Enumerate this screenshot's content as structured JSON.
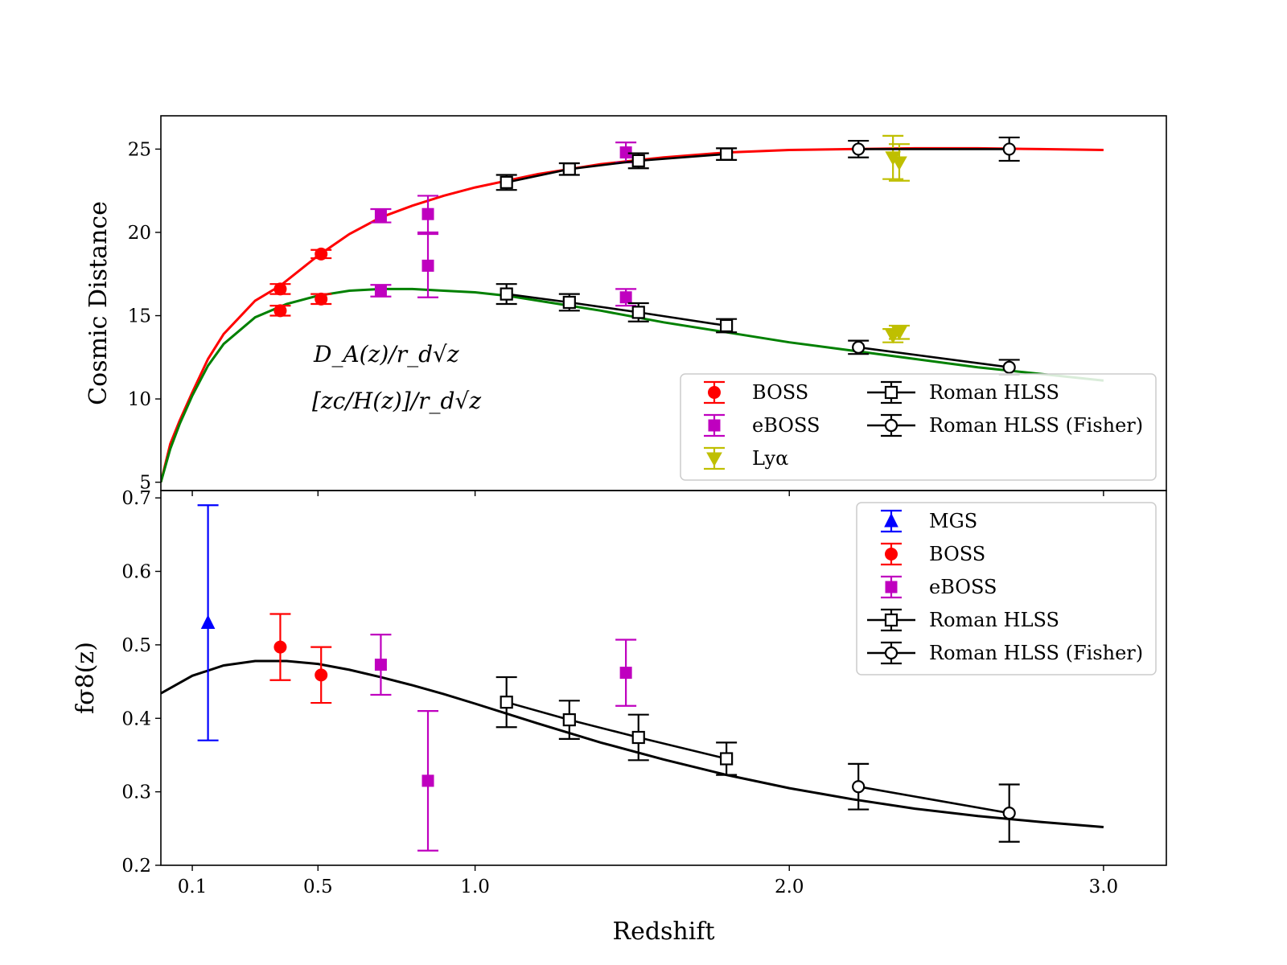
{
  "chart_data": [
    {
      "type": "scatter",
      "name": "Cosmic distance panel",
      "ylabel": "Cosmic Distance",
      "xlabel": "Redshift",
      "x_display_domain": [
        0.0,
        3.2
      ],
      "ylim": [
        4.5,
        27.0
      ],
      "yticks": [
        5,
        10,
        15,
        20,
        25
      ],
      "xticks": [
        0.1,
        0.5,
        1.0,
        2.0,
        3.0
      ],
      "xtick_labels": [
        "0.1",
        "0.5",
        "1.0",
        "2.0",
        "3.0"
      ],
      "curve_labels": [
        {
          "key": "DA",
          "text": "D_A(z)/r_d√z",
          "color": "#ff0000"
        },
        {
          "key": "DH",
          "text": "[zc/H(z)]/r_d√z",
          "color": "#008000"
        }
      ],
      "curves": [
        {
          "key": "DA",
          "color": "#ff0000",
          "x": [
            0.0,
            0.03,
            0.06,
            0.1,
            0.15,
            0.2,
            0.3,
            0.38,
            0.5,
            0.6,
            0.7,
            0.8,
            0.9,
            1.0,
            1.1,
            1.2,
            1.3,
            1.4,
            1.5,
            1.6,
            1.8,
            2.0,
            2.2,
            2.4,
            2.6,
            2.8,
            3.0
          ],
          "y": [
            5.0,
            7.3,
            8.7,
            10.4,
            12.4,
            13.9,
            15.9,
            16.8,
            18.6,
            19.9,
            20.9,
            21.6,
            22.2,
            22.7,
            23.1,
            23.5,
            23.8,
            24.1,
            24.3,
            24.5,
            24.8,
            24.95,
            25.0,
            25.05,
            25.05,
            25.0,
            24.95
          ]
        },
        {
          "key": "DH",
          "color": "#008000",
          "x": [
            0.0,
            0.03,
            0.06,
            0.1,
            0.15,
            0.2,
            0.3,
            0.4,
            0.5,
            0.6,
            0.7,
            0.8,
            0.9,
            1.0,
            1.1,
            1.2,
            1.4,
            1.6,
            1.8,
            2.0,
            2.2,
            2.4,
            2.6,
            2.8,
            3.0
          ],
          "y": [
            5.0,
            7.0,
            8.5,
            10.2,
            12.0,
            13.3,
            14.9,
            15.7,
            16.2,
            16.5,
            16.6,
            16.6,
            16.5,
            16.4,
            16.2,
            15.9,
            15.3,
            14.6,
            14.0,
            13.4,
            12.9,
            12.4,
            11.9,
            11.5,
            11.1
          ]
        }
      ],
      "series": [
        {
          "name": "BOSS",
          "color": "#ff0000",
          "marker": "circle",
          "filled": true,
          "points": [
            [
              0.38,
              16.6,
              0.3
            ],
            [
              0.38,
              15.3,
              0.3
            ],
            [
              0.51,
              18.7,
              0.25
            ],
            [
              0.51,
              16.0,
              0.3
            ]
          ]
        },
        {
          "name": "eBOSS",
          "color": "#bf00bf",
          "marker": "square",
          "filled": true,
          "points": [
            [
              0.7,
              21.0,
              0.4
            ],
            [
              0.7,
              16.5,
              0.35
            ],
            [
              0.85,
              21.1,
              1.1
            ],
            [
              0.85,
              18.0,
              1.9
            ],
            [
              1.48,
              24.8,
              0.6
            ],
            [
              1.48,
              16.1,
              0.5
            ]
          ]
        },
        {
          "name": "Lyα",
          "color": "#bfbf00",
          "marker": "triangle-down",
          "filled": true,
          "points": [
            [
              2.33,
              24.5,
              1.3
            ],
            [
              2.35,
              24.2,
              1.1
            ],
            [
              2.33,
              13.8,
              0.4
            ],
            [
              2.35,
              14.0,
              0.4
            ]
          ]
        },
        {
          "name": "Roman HLSS",
          "color": "#000000",
          "marker": "square",
          "filled": false,
          "points": [
            [
              1.1,
              23.0,
              0.45
            ],
            [
              1.3,
              23.8,
              0.35
            ],
            [
              1.52,
              24.3,
              0.45
            ],
            [
              1.8,
              24.7,
              0.35
            ],
            [
              1.1,
              16.3,
              0.6
            ],
            [
              1.3,
              15.8,
              0.5
            ],
            [
              1.52,
              15.2,
              0.55
            ],
            [
              1.8,
              14.4,
              0.4
            ]
          ]
        },
        {
          "name": "Roman HLSS (Fisher)",
          "color": "#000000",
          "marker": "circle",
          "filled": false,
          "points": [
            [
              2.22,
              25.0,
              0.5
            ],
            [
              2.7,
              25.0,
              0.7
            ],
            [
              2.22,
              13.1,
              0.4
            ],
            [
              2.7,
              11.9,
              0.45
            ]
          ]
        }
      ],
      "legend": {
        "location": "lower-right",
        "columns": [
          [
            "BOSS",
            "eBOSS",
            "Lyα"
          ],
          [
            "Roman HLSS",
            "Roman HLSS (Fisher)"
          ]
        ]
      }
    },
    {
      "type": "scatter",
      "name": "Growth rate panel",
      "ylabel": "fσ8(z)",
      "xlabel": "Redshift",
      "x_display_domain": [
        0.0,
        3.2
      ],
      "ylim": [
        0.2,
        0.71
      ],
      "yticks": [
        0.2,
        0.3,
        0.4,
        0.5,
        0.6,
        0.7
      ],
      "ytick_labels": [
        "0.2",
        "0.3",
        "0.4",
        "0.5",
        "0.6",
        "0.7"
      ],
      "xticks": [
        0.1,
        0.5,
        1.0,
        2.0,
        3.0
      ],
      "xtick_labels": [
        "0.1",
        "0.5",
        "1.0",
        "2.0",
        "3.0"
      ],
      "curves": [
        {
          "key": "fs8",
          "color": "#000000",
          "x": [
            0.0,
            0.1,
            0.2,
            0.3,
            0.4,
            0.5,
            0.6,
            0.7,
            0.8,
            0.9,
            1.0,
            1.2,
            1.4,
            1.6,
            1.8,
            2.0,
            2.2,
            2.4,
            2.6,
            2.8,
            3.0
          ],
          "y": [
            0.434,
            0.458,
            0.472,
            0.478,
            0.478,
            0.474,
            0.466,
            0.456,
            0.445,
            0.433,
            0.42,
            0.393,
            0.367,
            0.344,
            0.323,
            0.305,
            0.29,
            0.277,
            0.267,
            0.259,
            0.252
          ]
        }
      ],
      "series": [
        {
          "name": "MGS",
          "color": "#0000ff",
          "marker": "triangle-up",
          "filled": true,
          "points": [
            [
              0.15,
              0.53,
              0.16
            ]
          ]
        },
        {
          "name": "BOSS",
          "color": "#ff0000",
          "marker": "circle",
          "filled": true,
          "points": [
            [
              0.38,
              0.497,
              0.045
            ],
            [
              0.51,
              0.459,
              0.038
            ]
          ]
        },
        {
          "name": "eBOSS",
          "color": "#bf00bf",
          "marker": "square",
          "filled": true,
          "points": [
            [
              0.7,
              0.473,
              0.041
            ],
            [
              0.85,
              0.315,
              0.095
            ],
            [
              1.48,
              0.462,
              0.045
            ]
          ]
        },
        {
          "name": "Roman HLSS",
          "color": "#000000",
          "marker": "square",
          "filled": false,
          "points": [
            [
              1.1,
              0.422,
              0.034
            ],
            [
              1.3,
              0.398,
              0.026
            ],
            [
              1.52,
              0.374,
              0.031
            ],
            [
              1.8,
              0.345,
              0.022
            ]
          ]
        },
        {
          "name": "Roman HLSS (Fisher)",
          "color": "#000000",
          "marker": "circle",
          "filled": false,
          "points": [
            [
              2.22,
              0.307,
              0.031
            ],
            [
              2.7,
              0.271,
              0.039
            ]
          ]
        }
      ],
      "legend": {
        "location": "upper-right",
        "columns": [
          [
            "MGS",
            "BOSS",
            "eBOSS",
            "Roman HLSS",
            "Roman HLSS (Fisher)"
          ]
        ]
      }
    }
  ]
}
